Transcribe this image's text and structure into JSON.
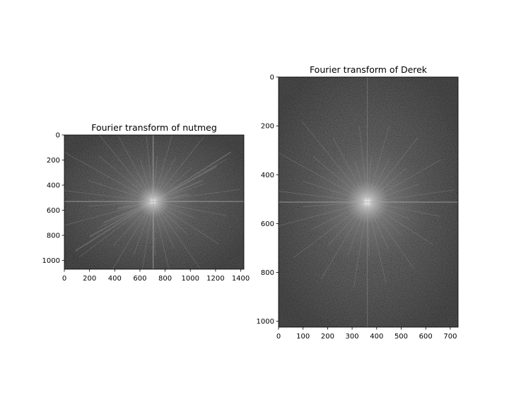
{
  "chart_data": [
    {
      "type": "heatmap",
      "title": "Fourier transform of nutmeg",
      "xlabel": "",
      "ylabel": "",
      "xlim": [
        0,
        1425
      ],
      "ylim": [
        1070,
        0
      ],
      "xticks": [
        0,
        200,
        400,
        600,
        800,
        1000,
        1200,
        1400
      ],
      "yticks": [
        0,
        200,
        400,
        600,
        800,
        1000
      ],
      "colormap": "gray",
      "spectrum_center": [
        705,
        530
      ],
      "grid": false
    },
    {
      "type": "heatmap",
      "title": "Fourier transform of Derek",
      "xlabel": "",
      "ylabel": "",
      "xlim": [
        0,
        732
      ],
      "ylim": [
        1024,
        0
      ],
      "xticks": [
        0,
        100,
        200,
        300,
        400,
        500,
        600,
        700
      ],
      "yticks": [
        0,
        200,
        400,
        600,
        800,
        1000
      ],
      "colormap": "gray",
      "spectrum_center": [
        362,
        512
      ],
      "grid": false
    }
  ]
}
